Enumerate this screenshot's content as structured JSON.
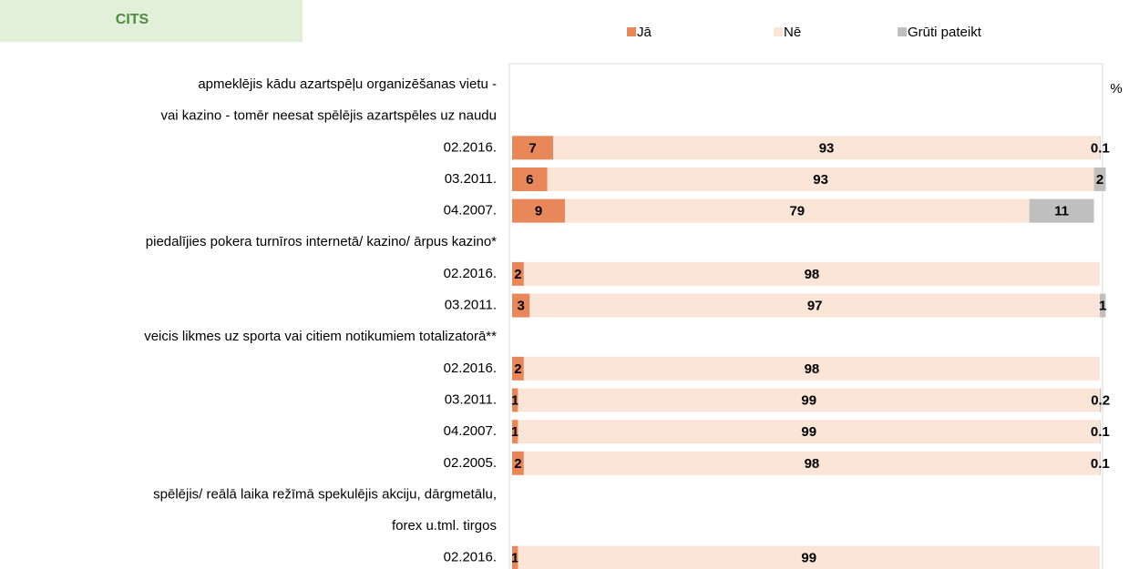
{
  "chart_data": {
    "type": "stacked_bar_horizontal",
    "title": "CITS",
    "x_label": "%",
    "categories": [
      "apmeklējis kādu azartspēļu organizēšanas vietu -",
      "vai kazino - tomēr neesat spēlējis azartspēles uz naudu",
      "02.2016.",
      "03.2011.",
      "04.2007.",
      "piedalījies pokera turnīros internetā/ kazino/ ārpus kazino*",
      "02.2016.",
      "03.2011.",
      "veicis likmes uz sporta vai citiem notikumiem totalizatorā**",
      "02.2016.",
      "03.2011.",
      "04.2007.",
      "02.2005.",
      "spēlējis/ reālā laika režīmā spekulējis akciju, dārgmetālu,",
      "forex u.tml. tirgos",
      "02.2016."
    ],
    "series": [
      {
        "name": "Jā",
        "color": "#e8875a",
        "values": [
          null,
          null,
          7,
          6,
          9,
          null,
          2,
          3,
          null,
          2,
          1,
          1,
          2,
          null,
          null,
          1
        ]
      },
      {
        "name": "Nē",
        "color": "#fbe5d6",
        "values": [
          null,
          null,
          93,
          93,
          79,
          null,
          98,
          97,
          null,
          98,
          99,
          99,
          98,
          null,
          null,
          99
        ]
      },
      {
        "name": "Grūti pateikt",
        "color": "#bfbfbf",
        "values": [
          null,
          null,
          0.1,
          2,
          11,
          null,
          null,
          1,
          null,
          null,
          0.2,
          0.1,
          0.1,
          null,
          null,
          null
        ]
      }
    ],
    "xlim": [
      0,
      100
    ],
    "legend": "top"
  }
}
